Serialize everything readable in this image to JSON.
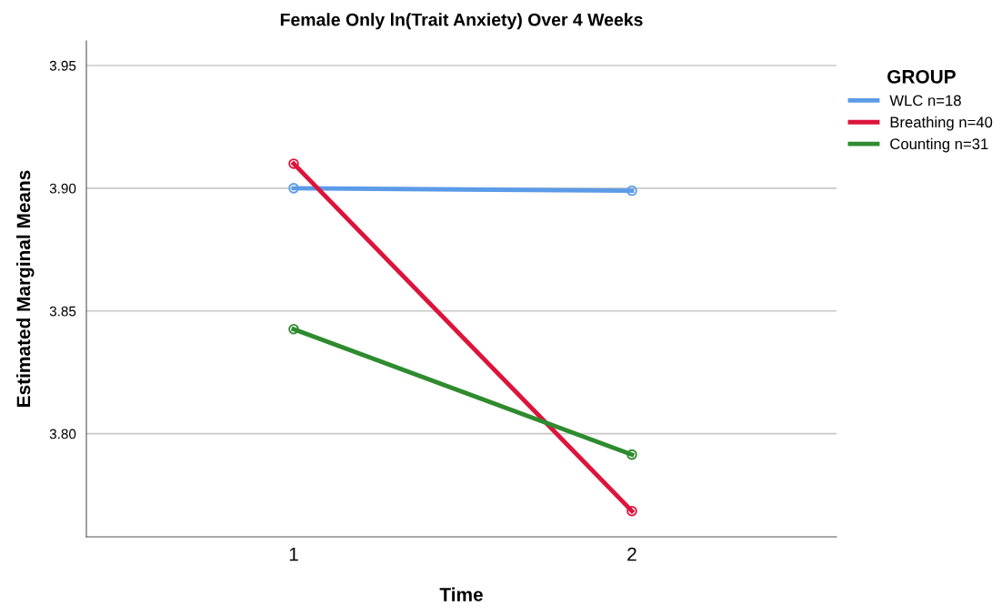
{
  "chart_data": {
    "type": "line",
    "title": "Female Only ln(Trait Anxiety) Over 4 Weeks",
    "xlabel": "Time",
    "ylabel": "Estimated Marginal Means",
    "legend_title": "GROUP",
    "categories": [
      "1",
      "2"
    ],
    "series": [
      {
        "name": "WLC n=18",
        "color": "#5b9be8",
        "values": [
          3.9,
          3.899
        ]
      },
      {
        "name": "Breathing n=40",
        "color": "#dc143c",
        "values": [
          3.91,
          3.7685
        ]
      },
      {
        "name": "Counting n=31",
        "color": "#2e8b2e",
        "values": [
          3.8426,
          3.7915
        ]
      }
    ],
    "ylim": [
      3.758,
      3.96
    ],
    "yticks": [
      {
        "value": 3.8,
        "label": "3.80"
      },
      {
        "value": 3.85,
        "label": "3.85"
      },
      {
        "value": 3.9,
        "label": "3.90"
      },
      {
        "value": 3.95,
        "label": "3.95"
      }
    ],
    "grid": "y",
    "legend": "top right",
    "marker": "circle",
    "line_style": "solid"
  }
}
